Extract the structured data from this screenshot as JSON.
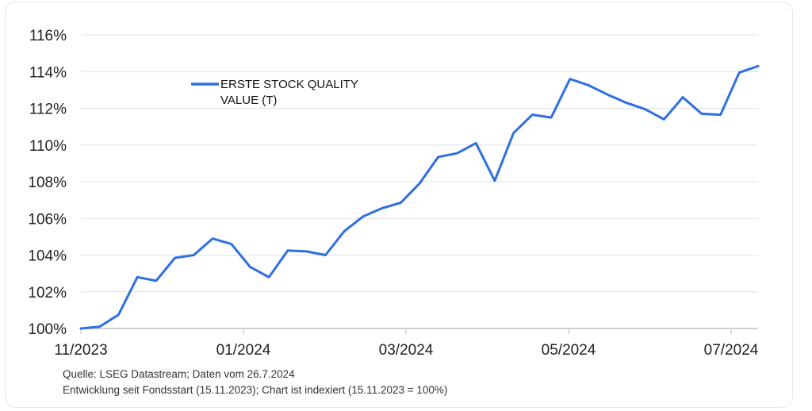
{
  "chart_data": {
    "type": "line",
    "x_tick_labels": [
      "11/2023",
      "01/2024",
      "03/2024",
      "05/2024",
      "07/2024"
    ],
    "y_tick_labels": [
      "100%",
      "102%",
      "104%",
      "106%",
      "108%",
      "110%",
      "112%",
      "114%",
      "116%"
    ],
    "ylim": [
      100,
      116
    ],
    "grid": true,
    "legend_position": "top-left",
    "series": [
      {
        "name_lines": [
          "ERSTE STOCK QUALITY",
          "VALUE (T)"
        ],
        "color": "#2e6fe3",
        "values": [
          100.0,
          100.1,
          100.75,
          102.8,
          102.6,
          103.85,
          104.0,
          104.9,
          104.6,
          103.35,
          102.8,
          104.25,
          104.2,
          104.0,
          105.3,
          106.1,
          106.55,
          106.85,
          107.9,
          109.35,
          109.55,
          110.1,
          108.05,
          110.65,
          111.65,
          111.5,
          113.6,
          113.25,
          112.75,
          112.3,
          111.95,
          111.4,
          112.6,
          111.7,
          111.65,
          113.95,
          114.3
        ]
      }
    ]
  },
  "notes": {
    "line1": "Quelle: LSEG Datastream; Daten vom 26.7.2024",
    "line2": "Entwicklung seit Fondsstart (15.11.2023); Chart ist indexiert (15.11.2023 = 100%)"
  }
}
